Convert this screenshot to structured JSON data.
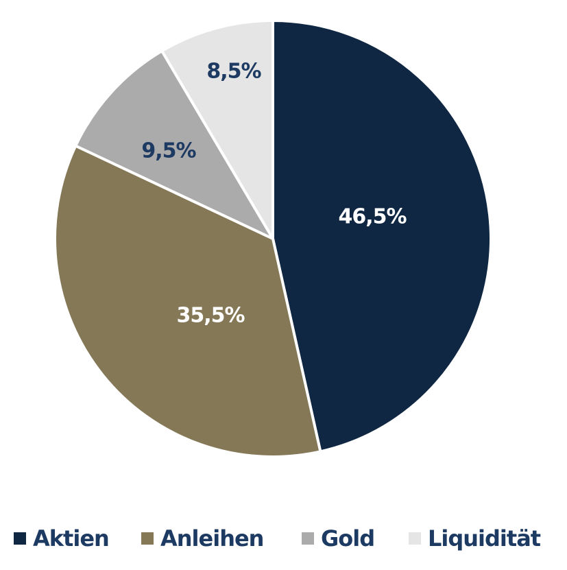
{
  "chart_data": {
    "type": "pie",
    "title": "",
    "start_angle_deg": 0,
    "direction": "clockwise",
    "categories": [
      "Aktien",
      "Anleihen",
      "Gold",
      "Liquidität"
    ],
    "values": [
      46.5,
      35.5,
      9.5,
      8.5
    ],
    "labels": [
      "46,5%",
      "35,5%",
      "9,5%",
      "8,5%"
    ],
    "colors": [
      "#0f2742",
      "#857857",
      "#ababab",
      "#e5e5e5"
    ],
    "label_colors": [
      "#ffffff",
      "#ffffff",
      "#1d3a63",
      "#1d3a63"
    ],
    "legend_position": "bottom"
  },
  "legend": {
    "items": [
      {
        "label": "Aktien",
        "color": "#0f2742"
      },
      {
        "label": "Anleihen",
        "color": "#857857"
      },
      {
        "label": "Gold",
        "color": "#ababab"
      },
      {
        "label": "Liquidität",
        "color": "#e5e5e5"
      }
    ]
  }
}
